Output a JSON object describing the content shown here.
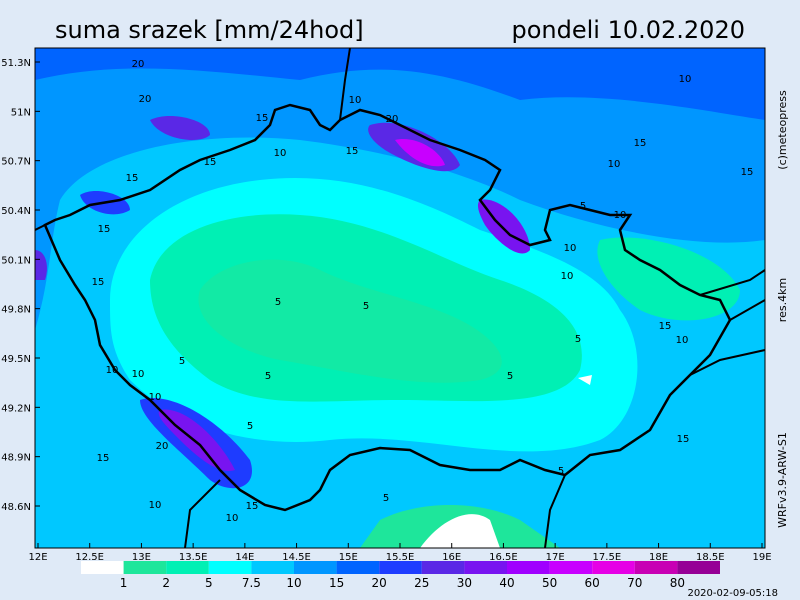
{
  "header": {
    "title": "suma srazek [mm/24hod]",
    "date": "pondeli 10.02.2020"
  },
  "map": {
    "lon_ticks": [
      "12E",
      "12.5E",
      "13E",
      "13.5E",
      "14E",
      "14.5E",
      "15E",
      "15.5E",
      "16E",
      "16.5E",
      "17E",
      "17.5E",
      "18E",
      "18.5E",
      "19E"
    ],
    "lat_ticks": [
      "51.3N",
      "51N",
      "50.7N",
      "50.4N",
      "50.1N",
      "49.8N",
      "49.5N",
      "49.2N",
      "48.9N",
      "48.6N"
    ],
    "contour_labels": [
      20,
      20,
      15,
      15,
      15,
      10,
      10,
      15,
      20,
      10,
      15,
      10,
      5,
      10,
      15,
      10,
      15,
      5,
      5,
      5,
      5,
      5,
      10,
      5,
      10,
      10,
      15,
      15,
      20,
      15,
      10,
      10,
      5,
      5,
      5,
      15,
      10,
      10,
      15
    ]
  },
  "side_labels": {
    "copyright": "(c)meteopress",
    "resolution": "res.4km",
    "model": "WRFv3.9-ARW-S1"
  },
  "legend": {
    "levels": [
      1,
      2,
      5,
      7.5,
      10,
      15,
      20,
      25,
      30,
      40,
      50,
      60,
      70,
      80
    ],
    "colors": [
      "#ffffff",
      "#1ee69b",
      "#00f0b4",
      "#00ffff",
      "#00c8ff",
      "#0096ff",
      "#0064ff",
      "#1e3cff",
      "#5a28e6",
      "#7814f0",
      "#a000ff",
      "#c800ff",
      "#e600e6",
      "#c800b4",
      "#960096"
    ]
  },
  "footer": {
    "timestamp": "2020-02-09-05:18"
  }
}
